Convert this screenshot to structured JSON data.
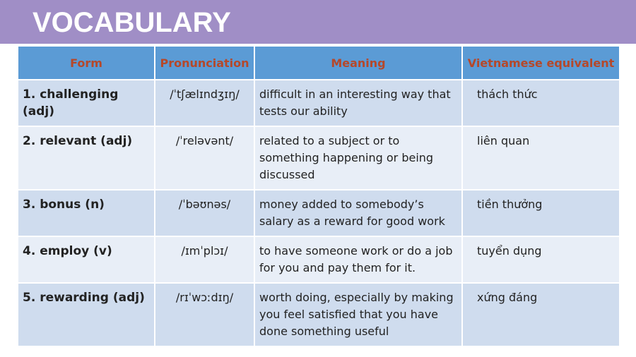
{
  "header": {
    "title": "VOCABULARY"
  },
  "table": {
    "columns": [
      "Form",
      "Pronunciation",
      "Meaning",
      "Vietnamese equivalent"
    ],
    "rows": [
      [
        "1. challenging (adj)",
        "/ˈtʃælɪndʒɪŋ/",
        "difficult in an interesting way that tests our ability",
        "thách thức"
      ],
      [
        "2. relevant (adj)",
        "/ˈreləvənt/",
        "related to a subject or to something happening or being discussed",
        "liên quan"
      ],
      [
        "3. bonus (n)",
        "/ˈbəʊnəs/",
        "money added to somebody’s salary as a reward for good work",
        "tiền thưởng"
      ],
      [
        "4. employ (v)",
        "/ɪmˈplɔɪ/",
        "to have someone work or do a job for you and pay them for it.",
        "tuyển dụng"
      ],
      [
        "5. rewarding (adj)",
        "/rɪˈwɔːdɪŋ/",
        "worth doing, especially by making you feel satisfied that you have done something useful",
        "xứng đáng"
      ]
    ]
  }
}
